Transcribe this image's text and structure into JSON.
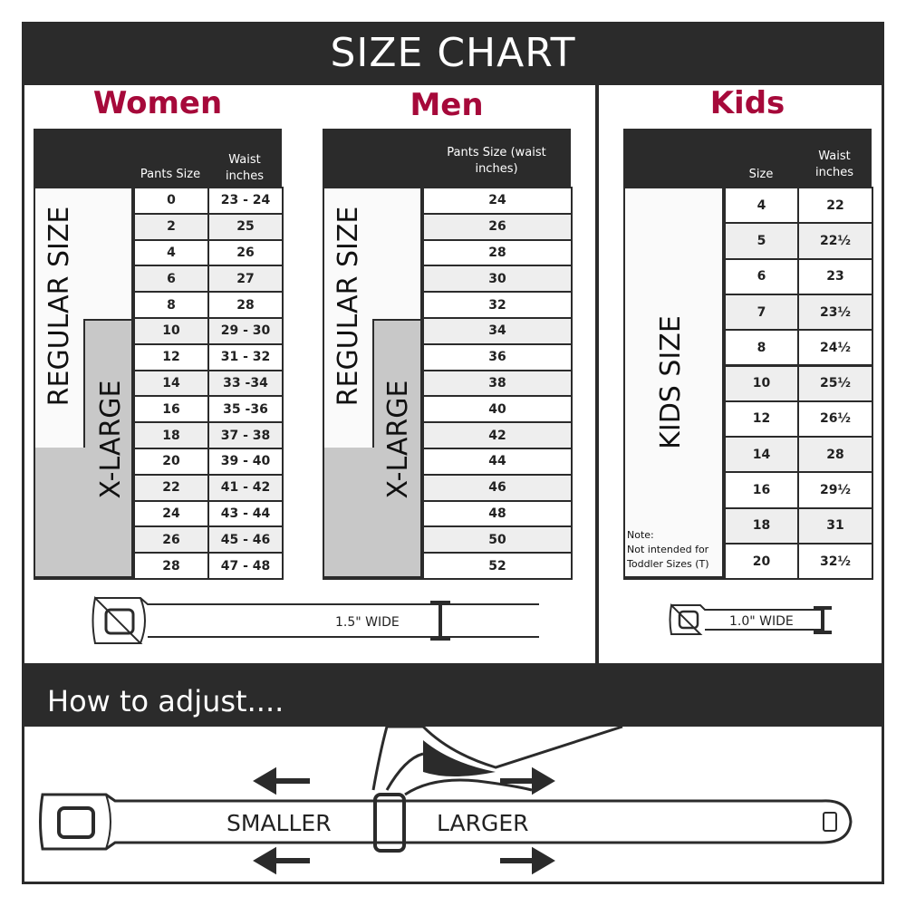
{
  "title": "SIZE CHART",
  "women": {
    "title": "Women",
    "col1": "Pants Size",
    "col2": "Waist inches",
    "regular_label": "REGULAR SIZE",
    "xlarge_label": "X-LARGE",
    "rows": [
      [
        "0",
        "23 - 24"
      ],
      [
        "2",
        "25"
      ],
      [
        "4",
        "26"
      ],
      [
        "6",
        "27"
      ],
      [
        "8",
        "28"
      ],
      [
        "10",
        "29 - 30"
      ],
      [
        "12",
        "31 - 32"
      ],
      [
        "14",
        "33 -34"
      ],
      [
        "16",
        "35 -36"
      ],
      [
        "18",
        "37 - 38"
      ],
      [
        "20",
        "39 - 40"
      ],
      [
        "22",
        "41 - 42"
      ],
      [
        "24",
        "43 - 44"
      ],
      [
        "26",
        "45 - 46"
      ],
      [
        "28",
        "47 - 48"
      ]
    ],
    "belt_label": "1.5\" WIDE"
  },
  "men": {
    "title": "Men",
    "col1": "Pants Size (waist inches)",
    "regular_label": "REGULAR SIZE",
    "xlarge_label": "X-LARGE",
    "rows": [
      "24",
      "26",
      "28",
      "30",
      "32",
      "34",
      "36",
      "38",
      "40",
      "42",
      "44",
      "46",
      "48",
      "50",
      "52"
    ]
  },
  "kids": {
    "title": "Kids",
    "col1": "Size",
    "col2": "Waist inches",
    "label": "KIDS SIZE",
    "note_title": "Note:",
    "note_line1": "Not intended for",
    "note_line2": "Toddler Sizes (T)",
    "rows": [
      [
        "4",
        "22"
      ],
      [
        "5",
        "22½"
      ],
      [
        "6",
        "23"
      ],
      [
        "7",
        "23½"
      ],
      [
        "8",
        "24½"
      ],
      [
        "10",
        "25½"
      ],
      [
        "12",
        "26½"
      ],
      [
        "14",
        "28"
      ],
      [
        "16",
        "29½"
      ],
      [
        "18",
        "31"
      ],
      [
        "20",
        "32½"
      ]
    ],
    "belt_label": "1.0\" WIDE"
  },
  "adjust": {
    "title": "How to adjust....",
    "smaller": "SMALLER",
    "larger": "LARGER"
  },
  "colors": {
    "dark": "#2b2b2b",
    "accent": "#a6093a",
    "xlarge": "#c8c8c8",
    "row_alt": "#eeeeee"
  }
}
